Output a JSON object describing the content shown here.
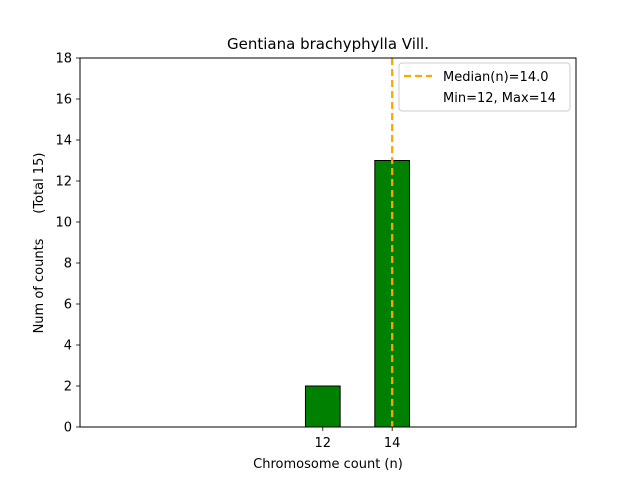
{
  "chart_data": {
    "type": "bar",
    "title": "Gentiana brachyphylla Vill.",
    "xlabel": "Chromosome count (n)",
    "ylabel": "Num of counts      (Total 15)",
    "xlim": [
      5,
      19.3
    ],
    "ylim": [
      0,
      18
    ],
    "x_ticks": [
      12,
      14
    ],
    "y_ticks": [
      0,
      2,
      4,
      6,
      8,
      10,
      12,
      14,
      16,
      18
    ],
    "bar_width": 1,
    "categories": [
      12,
      14
    ],
    "values": [
      2,
      13
    ],
    "baseline_extent": [
      5,
      14
    ],
    "bar_color": "#008000",
    "bar_edge_color": "#000000",
    "median": 14.0,
    "median_color": "#ffa500",
    "legend": {
      "position": "top-right",
      "entries": [
        "Median(n)=14.0",
        "Min=12, Max=14"
      ]
    },
    "grid": false
  }
}
